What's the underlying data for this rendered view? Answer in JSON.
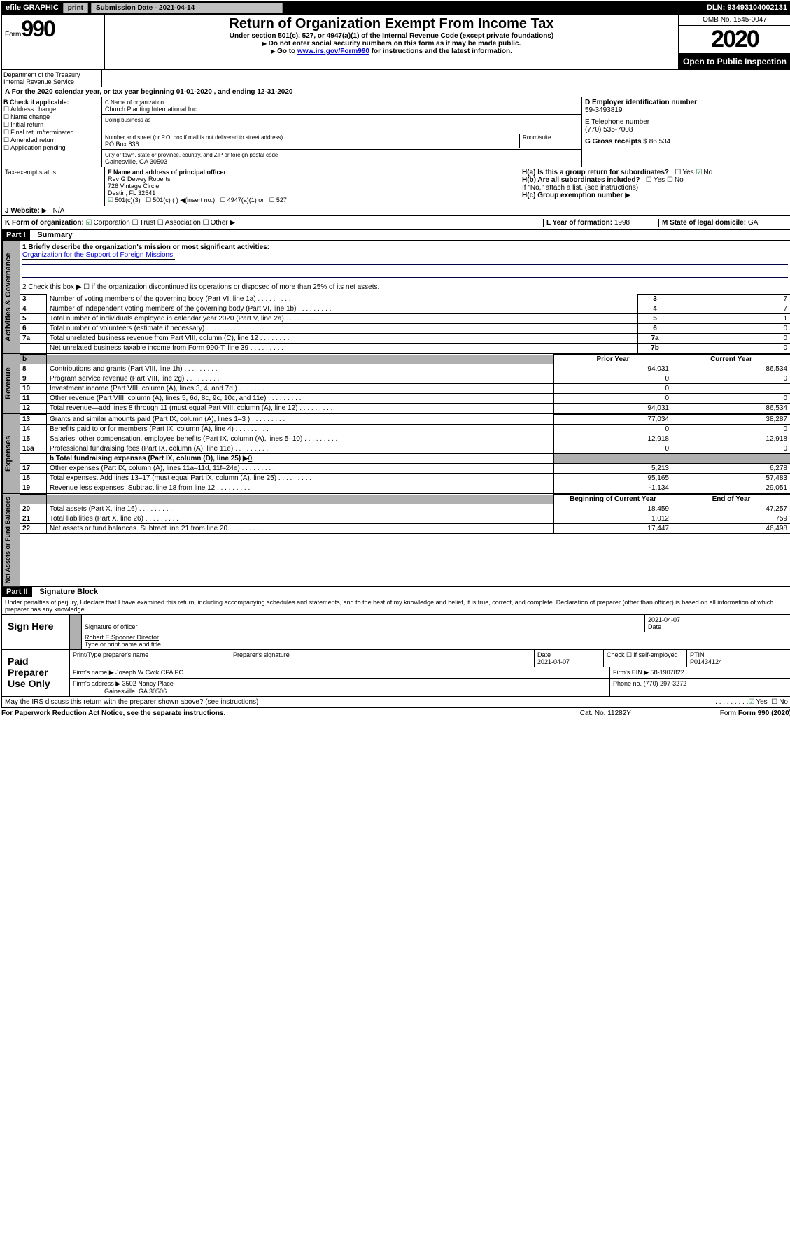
{
  "topbar": {
    "efile": "efile GRAPHIC",
    "print": "print",
    "submission": "Submission Date - 2021-04-14",
    "dln": "DLN: 93493104002131"
  },
  "header": {
    "form_label": "Form",
    "form_number": "990",
    "dept": "Department of the Treasury Internal Revenue Service",
    "title": "Return of Organization Exempt From Income Tax",
    "subtitle": "Under section 501(c), 527, or 4947(a)(1) of the Internal Revenue Code (except private foundations)",
    "note1": "Do not enter social security numbers on this form as it may be made public.",
    "note2_pre": "Go to ",
    "note2_link": "www.irs.gov/Form990",
    "note2_post": " for instructions and the latest information.",
    "omb": "OMB No. 1545-0047",
    "year": "2020",
    "open": "Open to Public Inspection"
  },
  "a_row": "A For the 2020 calendar year, or tax year beginning 01-01-2020    , and ending 12-31-2020",
  "b": {
    "label": "B Check if applicable:",
    "opts": [
      "Address change",
      "Name change",
      "Initial return",
      "Final return/terminated",
      "Amended return",
      "Application pending"
    ],
    "c_label": "C Name of organization",
    "c_name": "Church Planting International Inc",
    "dba_label": "Doing business as",
    "addr_label": "Number and street (or P.O. box if mail is not delivered to street address)",
    "room_label": "Room/suite",
    "addr": "PO Box 836",
    "city_label": "City or town, state or province, country, and ZIP or foreign postal code",
    "city": "Gainesville, GA  30503",
    "d_label": "D Employer identification number",
    "d_val": "59-3493819",
    "e_label": "E Telephone number",
    "e_val": "(770) 535-7008",
    "g_label": "G Gross receipts $",
    "g_val": "86,534"
  },
  "f": {
    "tax_label": "Tax-exempt status:",
    "f_label": "F  Name and address of principal officer:",
    "f_name": "Rev G Dewey Roberts",
    "f_addr1": "726 Vintage Circle",
    "f_addr2": "Destin, FL  32541",
    "ha_label": "H(a)  Is this a group return for subordinates?",
    "hb_label": "H(b)  Are all subordinates included?",
    "hb_note": "If \"No,\" attach a list. (see instructions)",
    "hc_label": "H(c)  Group exemption number",
    "j_label": "J Website:",
    "j_val": "N/A",
    "i_501c3": "501(c)(3)",
    "i_501c": "501(c) (  )",
    "i_insert": "(insert no.)",
    "i_4947": "4947(a)(1) or",
    "i_527": "527"
  },
  "k": {
    "label": "K Form of organization:",
    "corp": "Corporation",
    "trust": "Trust",
    "assoc": "Association",
    "other": "Other",
    "l_label": "L Year of formation:",
    "l_val": "1998",
    "m_label": "M State of legal domicile:",
    "m_val": "GA"
  },
  "part1": {
    "header": "Part I",
    "title": "Summary",
    "line1_label": "1  Briefly describe the organization's mission or most significant activities:",
    "line1_val": "Organization for the Support of Foreign Missions.",
    "line2": "2    Check this box ▶ ☐  if the organization discontinued its operations or disposed of more than 25% of its net assets.",
    "rows_gov": [
      {
        "n": "3",
        "label": "Number of voting members of the governing body (Part VI, line 1a)",
        "box": "3",
        "val": "7"
      },
      {
        "n": "4",
        "label": "Number of independent voting members of the governing body (Part VI, line 1b)",
        "box": "4",
        "val": "7"
      },
      {
        "n": "5",
        "label": "Total number of individuals employed in calendar year 2020 (Part V, line 2a)",
        "box": "5",
        "val": "1"
      },
      {
        "n": "6",
        "label": "Total number of volunteers (estimate if necessary)",
        "box": "6",
        "val": "0"
      },
      {
        "n": "7a",
        "label": "Total unrelated business revenue from Part VIII, column (C), line 12",
        "box": "7a",
        "val": "0"
      },
      {
        "n": "",
        "label": "Net unrelated business taxable income from Form 990-T, line 39",
        "box": "7b",
        "val": "0"
      }
    ],
    "prior_year": "Prior Year",
    "current_year": "Current Year",
    "rows_rev": [
      {
        "n": "8",
        "label": "Contributions and grants (Part VIII, line 1h)",
        "py": "94,031",
        "cy": "86,534"
      },
      {
        "n": "9",
        "label": "Program service revenue (Part VIII, line 2g)",
        "py": "0",
        "cy": "0"
      },
      {
        "n": "10",
        "label": "Investment income (Part VIII, column (A), lines 3, 4, and 7d )",
        "py": "0",
        "cy": ""
      },
      {
        "n": "11",
        "label": "Other revenue (Part VIII, column (A), lines 5, 6d, 8c, 9c, 10c, and 11e)",
        "py": "0",
        "cy": "0"
      },
      {
        "n": "12",
        "label": "Total revenue—add lines 8 through 11 (must equal Part VIII, column (A), line 12)",
        "py": "94,031",
        "cy": "86,534"
      }
    ],
    "rows_exp": [
      {
        "n": "13",
        "label": "Grants and similar amounts paid (Part IX, column (A), lines 1–3 )",
        "py": "77,034",
        "cy": "38,287"
      },
      {
        "n": "14",
        "label": "Benefits paid to or for members (Part IX, column (A), line 4)",
        "py": "0",
        "cy": "0"
      },
      {
        "n": "15",
        "label": "Salaries, other compensation, employee benefits (Part IX, column (A), lines 5–10)",
        "py": "12,918",
        "cy": "12,918"
      },
      {
        "n": "16a",
        "label": "Professional fundraising fees (Part IX, column (A), line 11e)",
        "py": "0",
        "cy": "0"
      }
    ],
    "line16b_label": "b  Total fundraising expenses (Part IX, column (D), line 25) ▶",
    "line16b_val": "0",
    "rows_exp2": [
      {
        "n": "17",
        "label": "Other expenses (Part IX, column (A), lines 11a–11d, 11f–24e)",
        "py": "5,213",
        "cy": "6,278"
      },
      {
        "n": "18",
        "label": "Total expenses. Add lines 13–17 (must equal Part IX, column (A), line 25)",
        "py": "95,165",
        "cy": "57,483"
      },
      {
        "n": "19",
        "label": "Revenue less expenses. Subtract line 18 from line 12",
        "py": "-1,134",
        "cy": "29,051"
      }
    ],
    "begin_year": "Beginning of Current Year",
    "end_year": "End of Year",
    "rows_net": [
      {
        "n": "20",
        "label": "Total assets (Part X, line 16)",
        "py": "18,459",
        "cy": "47,257"
      },
      {
        "n": "21",
        "label": "Total liabilities (Part X, line 26)",
        "py": "1,012",
        "cy": "759"
      },
      {
        "n": "22",
        "label": "Net assets or fund balances. Subtract line 21 from line 20",
        "py": "17,447",
        "cy": "46,498"
      }
    ]
  },
  "part2": {
    "header": "Part II",
    "title": "Signature Block",
    "declaration": "Under penalties of perjury, I declare that I have examined this return, including accompanying schedules and statements, and to the best of my knowledge and belief, it is true, correct, and complete. Declaration of preparer (other than officer) is based on all information of which preparer has any knowledge."
  },
  "sign": {
    "label": "Sign Here",
    "sig_label": "Signature of officer",
    "date_label": "Date",
    "date_val": "2021-04-07",
    "name": "Robert E Spooner  Director",
    "name_label": "Type or print name and title"
  },
  "preparer": {
    "label": "Paid Preparer Use Only",
    "print_label": "Print/Type preparer's name",
    "sig_label": "Preparer's signature",
    "date_label": "Date",
    "date_val": "2021-04-07",
    "check_label": "Check ☐ if self-employed",
    "ptin_label": "PTIN",
    "ptin_val": "P01434124",
    "firm_name_label": "Firm's name    ▶",
    "firm_name": "Joseph W Cwik CPA PC",
    "firm_ein_label": "Firm's EIN ▶",
    "firm_ein": "58-1907822",
    "firm_addr_label": "Firm's address ▶",
    "firm_addr1": "3502 Nancy Place",
    "firm_addr2": "Gainesville, GA  30506",
    "phone_label": "Phone no.",
    "phone_val": "(770) 297-3272"
  },
  "footer": {
    "discuss": "May the IRS discuss this return with the preparer shown above? (see instructions)",
    "paperwork": "For Paperwork Reduction Act Notice, see the separate instructions.",
    "cat": "Cat. No. 11282Y",
    "form": "Form 990 (2020)"
  }
}
